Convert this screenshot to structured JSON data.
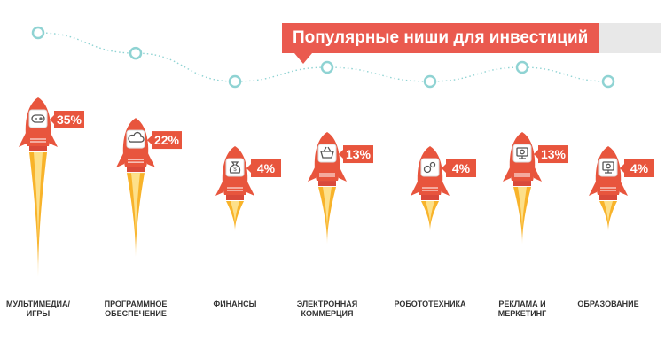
{
  "chart_data": {
    "type": "bar",
    "title": "Популярные ниши для инвестиций",
    "categories": [
      "МУЛЬТИМЕДИА/\nИГРЫ",
      "ПРОГРАММНОЕ\nОБЕСПЕЧЕНИЕ",
      "ФИНАНСЫ",
      "ЭЛЕКТРОННАЯ\nКОММЕРЦИЯ",
      "РОБОТОТЕХНИКА",
      "РЕКЛАМА И\nМЕРКЕТИНГ",
      "ОБРАЗОВАНИЕ"
    ],
    "values": [
      35,
      22,
      4,
      13,
      4,
      13,
      4
    ],
    "labels": [
      "35%",
      "22%",
      "4%",
      "13%",
      "4%",
      "13%",
      "4%"
    ],
    "icons": [
      "gamepad-icon",
      "cloud-icon",
      "money-bag-icon",
      "shopping-basket-icon",
      "gears-icon",
      "monitor-icon",
      "monitor-icon"
    ],
    "unit": "%",
    "ylim": [
      0,
      35
    ],
    "xlabel": "",
    "ylabel": ""
  },
  "colors": {
    "accent": "#ea5a4f",
    "rocket": "#e8553d",
    "flame_outer": "#f8b32a",
    "flame_inner": "#fde08a",
    "curve": "#8fd3d3",
    "dot_stroke": "#8fd3d3",
    "label_text": "#333333"
  }
}
